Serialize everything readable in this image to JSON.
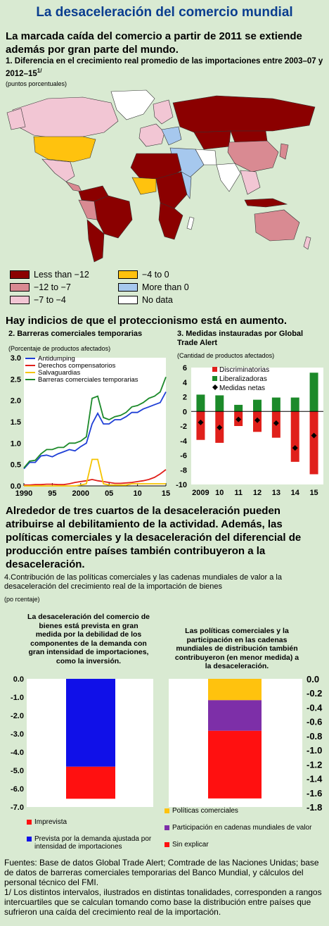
{
  "header": {
    "title": "La desaceleración del comercio mundial"
  },
  "section1": {
    "heading": "La marcada caída del comercio a partir de 2011 se extiende además por gran parte del mundo.",
    "chart_title": "1. Diferencia en el crecimiento real promedio de las importaciones entre 2003–07 y 2012–15",
    "chart_title_sup": "1/",
    "unit": "(puntos porcentuales)"
  },
  "map_legend": [
    {
      "label": "Less than −12",
      "color": "#8b0000"
    },
    {
      "label": "−12 to −7",
      "color": "#d98a92"
    },
    {
      "label": "−7 to −4",
      "color": "#f2c6d4"
    },
    {
      "label": "−4 to 0",
      "color": "#ffc20e"
    },
    {
      "label": "More than 0",
      "color": "#a6c8ee"
    },
    {
      "label": "No data",
      "color": "#ffffff"
    }
  ],
  "section2": {
    "heading": "Hay indicios de que el proteccionismo está en aumento."
  },
  "section3": {
    "heading": "Alrededor de tres cuartos de la desaceleración pueden atribuirse al debilitamiento de la actividad. Además, las políticas comerciales y la desaceleración del diferencial de producción entre países también contribuyeron a la desaceleración."
  },
  "chart_data": [
    {
      "type": "line",
      "title": "2. Barreras comerciales temporarias",
      "subtitle": "(Porcentaje de productos afectados)",
      "x": [
        1990,
        1991,
        1992,
        1993,
        1994,
        1995,
        1996,
        1997,
        1998,
        1999,
        2000,
        2001,
        2002,
        2003,
        2004,
        2005,
        2006,
        2007,
        2008,
        2009,
        2010,
        2011,
        2012,
        2013,
        2014,
        2015
      ],
      "xticks": [
        "1990",
        "95",
        "2000",
        "05",
        "10",
        "15"
      ],
      "ylim": [
        0,
        3.0
      ],
      "yticks": [
        "0.0",
        "0.5",
        "1.0",
        "1.5",
        "2.0",
        "2.5",
        "3.0"
      ],
      "series": [
        {
          "name": "Antidumping",
          "color": "#1f3fd6",
          "values": [
            0.4,
            0.55,
            0.55,
            0.7,
            0.72,
            0.68,
            0.75,
            0.8,
            0.85,
            0.82,
            0.92,
            1.0,
            1.45,
            1.7,
            1.45,
            1.45,
            1.55,
            1.55,
            1.62,
            1.72,
            1.72,
            1.8,
            1.85,
            1.9,
            1.95,
            2.2
          ]
        },
        {
          "name": "Derechos compensatorios",
          "color": "#e0201b",
          "values": [
            0.02,
            0.02,
            0.03,
            0.03,
            0.04,
            0.04,
            0.03,
            0.03,
            0.05,
            0.08,
            0.1,
            0.12,
            0.15,
            0.12,
            0.1,
            0.08,
            0.06,
            0.06,
            0.07,
            0.08,
            0.1,
            0.12,
            0.15,
            0.2,
            0.28,
            0.38
          ]
        },
        {
          "name": "Salvaguardias",
          "color": "#f5c400",
          "values": [
            0,
            0,
            0,
            0,
            0,
            0,
            0,
            0,
            0,
            0,
            0.02,
            0.05,
            0.62,
            0.62,
            0.05,
            0.02,
            0.02,
            0.02,
            0.02,
            0.05,
            0.05,
            0.05,
            0.05,
            0.05,
            0.05,
            0.05
          ]
        },
        {
          "name": "Barreras comerciales temporarias",
          "color": "#1c8a2a",
          "values": [
            0.42,
            0.58,
            0.6,
            0.75,
            0.85,
            0.85,
            0.9,
            0.9,
            1.0,
            1.0,
            1.05,
            1.15,
            2.05,
            2.1,
            1.6,
            1.55,
            1.62,
            1.65,
            1.72,
            1.85,
            1.88,
            1.95,
            2.05,
            2.1,
            2.2,
            2.55
          ]
        }
      ]
    },
    {
      "type": "bar",
      "title": "3. Medidas instauradas por Global Trade Alert",
      "subtitle": "(Cantidad de productos afectados)",
      "categories": [
        "2009",
        "10",
        "11",
        "12",
        "13",
        "14",
        "15"
      ],
      "ylim": [
        -10,
        6
      ],
      "yticks": [
        "6",
        "4",
        "2",
        "0",
        "-2",
        "-4",
        "-6",
        "-8",
        "-10"
      ],
      "series": [
        {
          "name": "Discriminatorias",
          "color": "#e0201b",
          "values": [
            -3.9,
            -4.3,
            -2.0,
            -2.8,
            -3.6,
            -6.9,
            -8.6
          ]
        },
        {
          "name": "Liberalizadoras",
          "color": "#1c8a2a",
          "values": [
            2.3,
            2.2,
            0.9,
            1.6,
            1.9,
            1.9,
            5.3
          ]
        },
        {
          "name": "Medidas netas",
          "color": "#000000",
          "values": [
            -1.5,
            -2.2,
            -1.1,
            -1.2,
            -1.6,
            -5.0,
            -3.3
          ]
        }
      ]
    },
    {
      "type": "bar",
      "title": "4.Contribución de las políticas comerciales y las cadenas mundiales de valor a la desaceleración del crecimiento real de la importación de bienes",
      "subtitle": "(po rcentaje)",
      "panels": [
        {
          "annotation": "La desaceleración del comercio de bienes está prevista en gran medida por la debilidad de los componentes de la demanda con gran intensidad de importaciones, como la inversión.",
          "ylim": [
            -7,
            0
          ],
          "yticks": [
            "0.0",
            "-1.0",
            "-2.0",
            "-3.0",
            "-4.0",
            "-5.0",
            "-6.0",
            "-7.0"
          ],
          "stack": [
            {
              "name": "Prevista por la demanda ajustada por intensidad de importaciones",
              "color": "#1010e8",
              "value": -4.8
            },
            {
              "name": "Imprevista",
              "color": "#ff1010",
              "value": -1.75
            }
          ]
        },
        {
          "annotation": "Las políticas comerciales y la participación en las cadenas mundiales de distribución también contribuyeron (en menor medida) a la desaceleración.",
          "ylim": [
            -1.8,
            0
          ],
          "yticks": [
            "0.0",
            "-0.2",
            "-0.4",
            "-0.6",
            "-0.8",
            "-1.0",
            "-1.2",
            "-1.4",
            "-1.6",
            "-1.8"
          ],
          "stack": [
            {
              "name": "Políticas comerciales",
              "color": "#ffc20e",
              "value": -0.3
            },
            {
              "name": "Participación en cadenas mundiales de valor",
              "color": "#7d2fa8",
              "value": -0.43
            },
            {
              "name": "Sin explicar",
              "color": "#ff1010",
              "value": -0.95
            }
          ]
        }
      ]
    }
  ],
  "sources": {
    "line1": "Fuentes: Base de datos Global Trade Alert; Comtrade de las Naciones Unidas; base de datos de barreras comerciales temporarias del Banco Mundial, y cálculos del personal técnico del FMI.",
    "line2": "1/ Los distintos intervalos, ilustrados en distintas tonalidades, corresponden a rangos intercuartiles que se calculan tomando como base la distribución entre países que sufrieron una caída del crecimiento real de la importación."
  }
}
